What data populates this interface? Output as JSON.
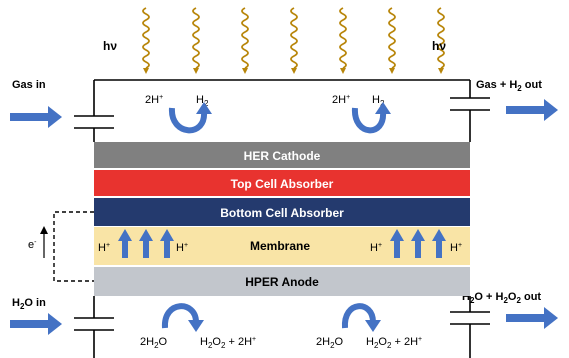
{
  "light": {
    "label_left": "hν",
    "label_right": "hν"
  },
  "gas": {
    "in_label": "Gas in",
    "out_label": "Gas + H",
    "out_sub": "2",
    "out_suffix": " out"
  },
  "water": {
    "in_label": "H",
    "in_sub": "2",
    "in_suffix": "O in",
    "out_label": "H",
    "out_sub1": "2",
    "out_mid": "O + H",
    "out_sub2": "2",
    "out_sub3": "2",
    "out_end": "O",
    "out_suffix": " out"
  },
  "cathode_reaction": {
    "reactant": "2H",
    "reactant_sup": "+",
    "product": "H",
    "product_sub": "2"
  },
  "anode_reaction": {
    "reactant_pre": "2H",
    "reactant_sub": "2",
    "reactant_post": "O",
    "product_pre": "H",
    "product_sub1": "2",
    "product_mid": "O",
    "product_sub2": "2",
    "product_post": " + 2H",
    "product_sup": "+"
  },
  "layers": {
    "cathode": "HER Cathode",
    "top_absorber": "Top Cell Absorber",
    "bottom_absorber": "Bottom Cell Absorber",
    "membrane": "Membrane",
    "anode": "HPER Anode"
  },
  "proton": {
    "label": "H",
    "sup": "+"
  },
  "electron": {
    "label": "e",
    "sup": "-"
  },
  "colors": {
    "cathode": "#808080",
    "top_absorber": "#e8332f",
    "bottom_absorber": "#243a6e",
    "membrane": "#f9e4a6",
    "anode": "#c2c6cc",
    "arrow_blue": "#4472c4",
    "photon": "#b8860b"
  }
}
